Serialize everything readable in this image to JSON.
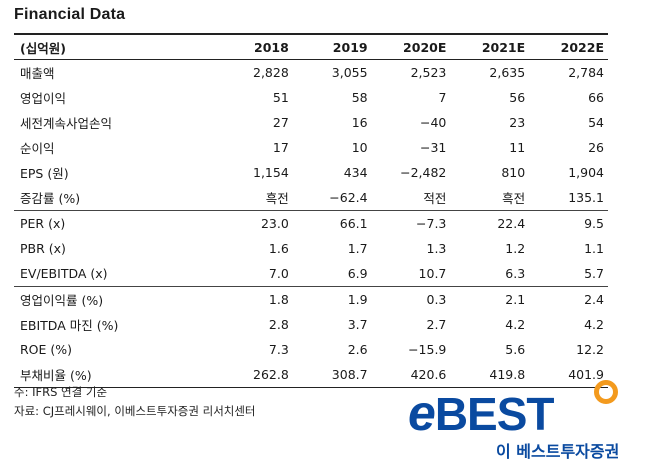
{
  "title": "Financial Data",
  "table": {
    "header": [
      "(십억원)",
      "2018",
      "2019",
      "2020E",
      "2021E",
      "2022E"
    ],
    "rows": [
      [
        "매출액",
        "2,828",
        "3,055",
        "2,523",
        "2,635",
        "2,784"
      ],
      [
        "영업이익",
        "51",
        "58",
        "7",
        "56",
        "66"
      ],
      [
        "세전계속사업손익",
        "27",
        "16",
        "−40",
        "23",
        "54"
      ],
      [
        "순이익",
        "17",
        "10",
        "−31",
        "11",
        "26"
      ],
      [
        "EPS (원)",
        "1,154",
        "434",
        "−2,482",
        "810",
        "1,904"
      ],
      [
        "증감률 (%)",
        "흑전",
        "−62.4",
        "적전",
        "흑전",
        "135.1"
      ],
      [
        "PER (x)",
        "23.0",
        "66.1",
        "−7.3",
        "22.4",
        "9.5"
      ],
      [
        "PBR (x)",
        "1.6",
        "1.7",
        "1.3",
        "1.2",
        "1.1"
      ],
      [
        "EV/EBITDA (x)",
        "7.0",
        "6.9",
        "10.7",
        "6.3",
        "5.7"
      ],
      [
        "영업이익률 (%)",
        "1.8",
        "1.9",
        "0.3",
        "2.1",
        "2.4"
      ],
      [
        "EBITDA 마진 (%)",
        "2.8",
        "3.7",
        "2.7",
        "4.2",
        "4.2"
      ],
      [
        "ROE (%)",
        "7.3",
        "2.6",
        "−15.9",
        "5.6",
        "12.2"
      ],
      [
        "부채비율 (%)",
        "262.8",
        "308.7",
        "420.6",
        "419.8",
        "401.9"
      ]
    ]
  },
  "notes": {
    "note1": "주: IFRS 연결 기준",
    "note2": "자료: CJ프레시웨이, 이베스트투자증권 리서치센터"
  },
  "logo": {
    "wordmark_e": "e",
    "wordmark_rest": "BEST",
    "subtitle": "이 베스트투자증권",
    "colors": {
      "brand_blue": "#0a4aa0",
      "ring_orange": "#f39a1e"
    }
  }
}
